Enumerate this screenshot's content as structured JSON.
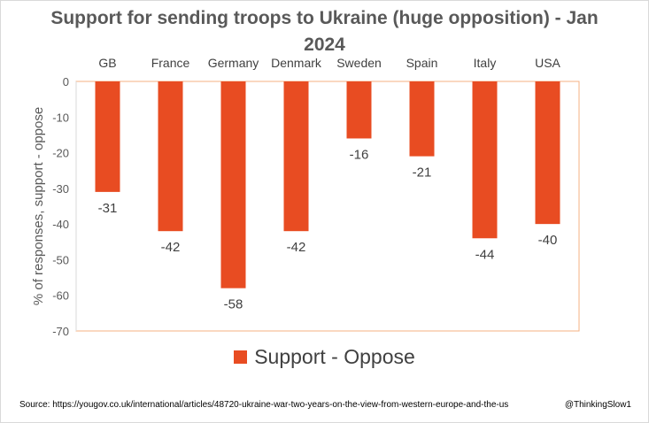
{
  "chart_data": {
    "type": "bar",
    "title": "Support for sending troops to Ukraine (huge opposition) - Jan 2024",
    "ylabel": "% of responses, support - oppose",
    "xlabel": "",
    "categories": [
      "GB",
      "France",
      "Germany",
      "Denmark",
      "Sweden",
      "Spain",
      "Italy",
      "USA"
    ],
    "series": [
      {
        "name": "Support  - Oppose",
        "values": [
          -31,
          -42,
          -58,
          -42,
          -16,
          -21,
          -44,
          -40
        ],
        "color": "#e84c22"
      }
    ],
    "ylim": [
      -70,
      0
    ],
    "yticks": [
      0,
      -10,
      -20,
      -30,
      -40,
      -50,
      -60,
      -70
    ],
    "grid": false,
    "legend_position": "bottom",
    "category_axis_position": "top"
  },
  "footer": {
    "source": "Source: https://yougov.co.uk/international/articles/48720-ukraine-war-two-years-on-the-view-from-western-europe-and-the-us",
    "credit": "@ThinkingSlow1"
  }
}
